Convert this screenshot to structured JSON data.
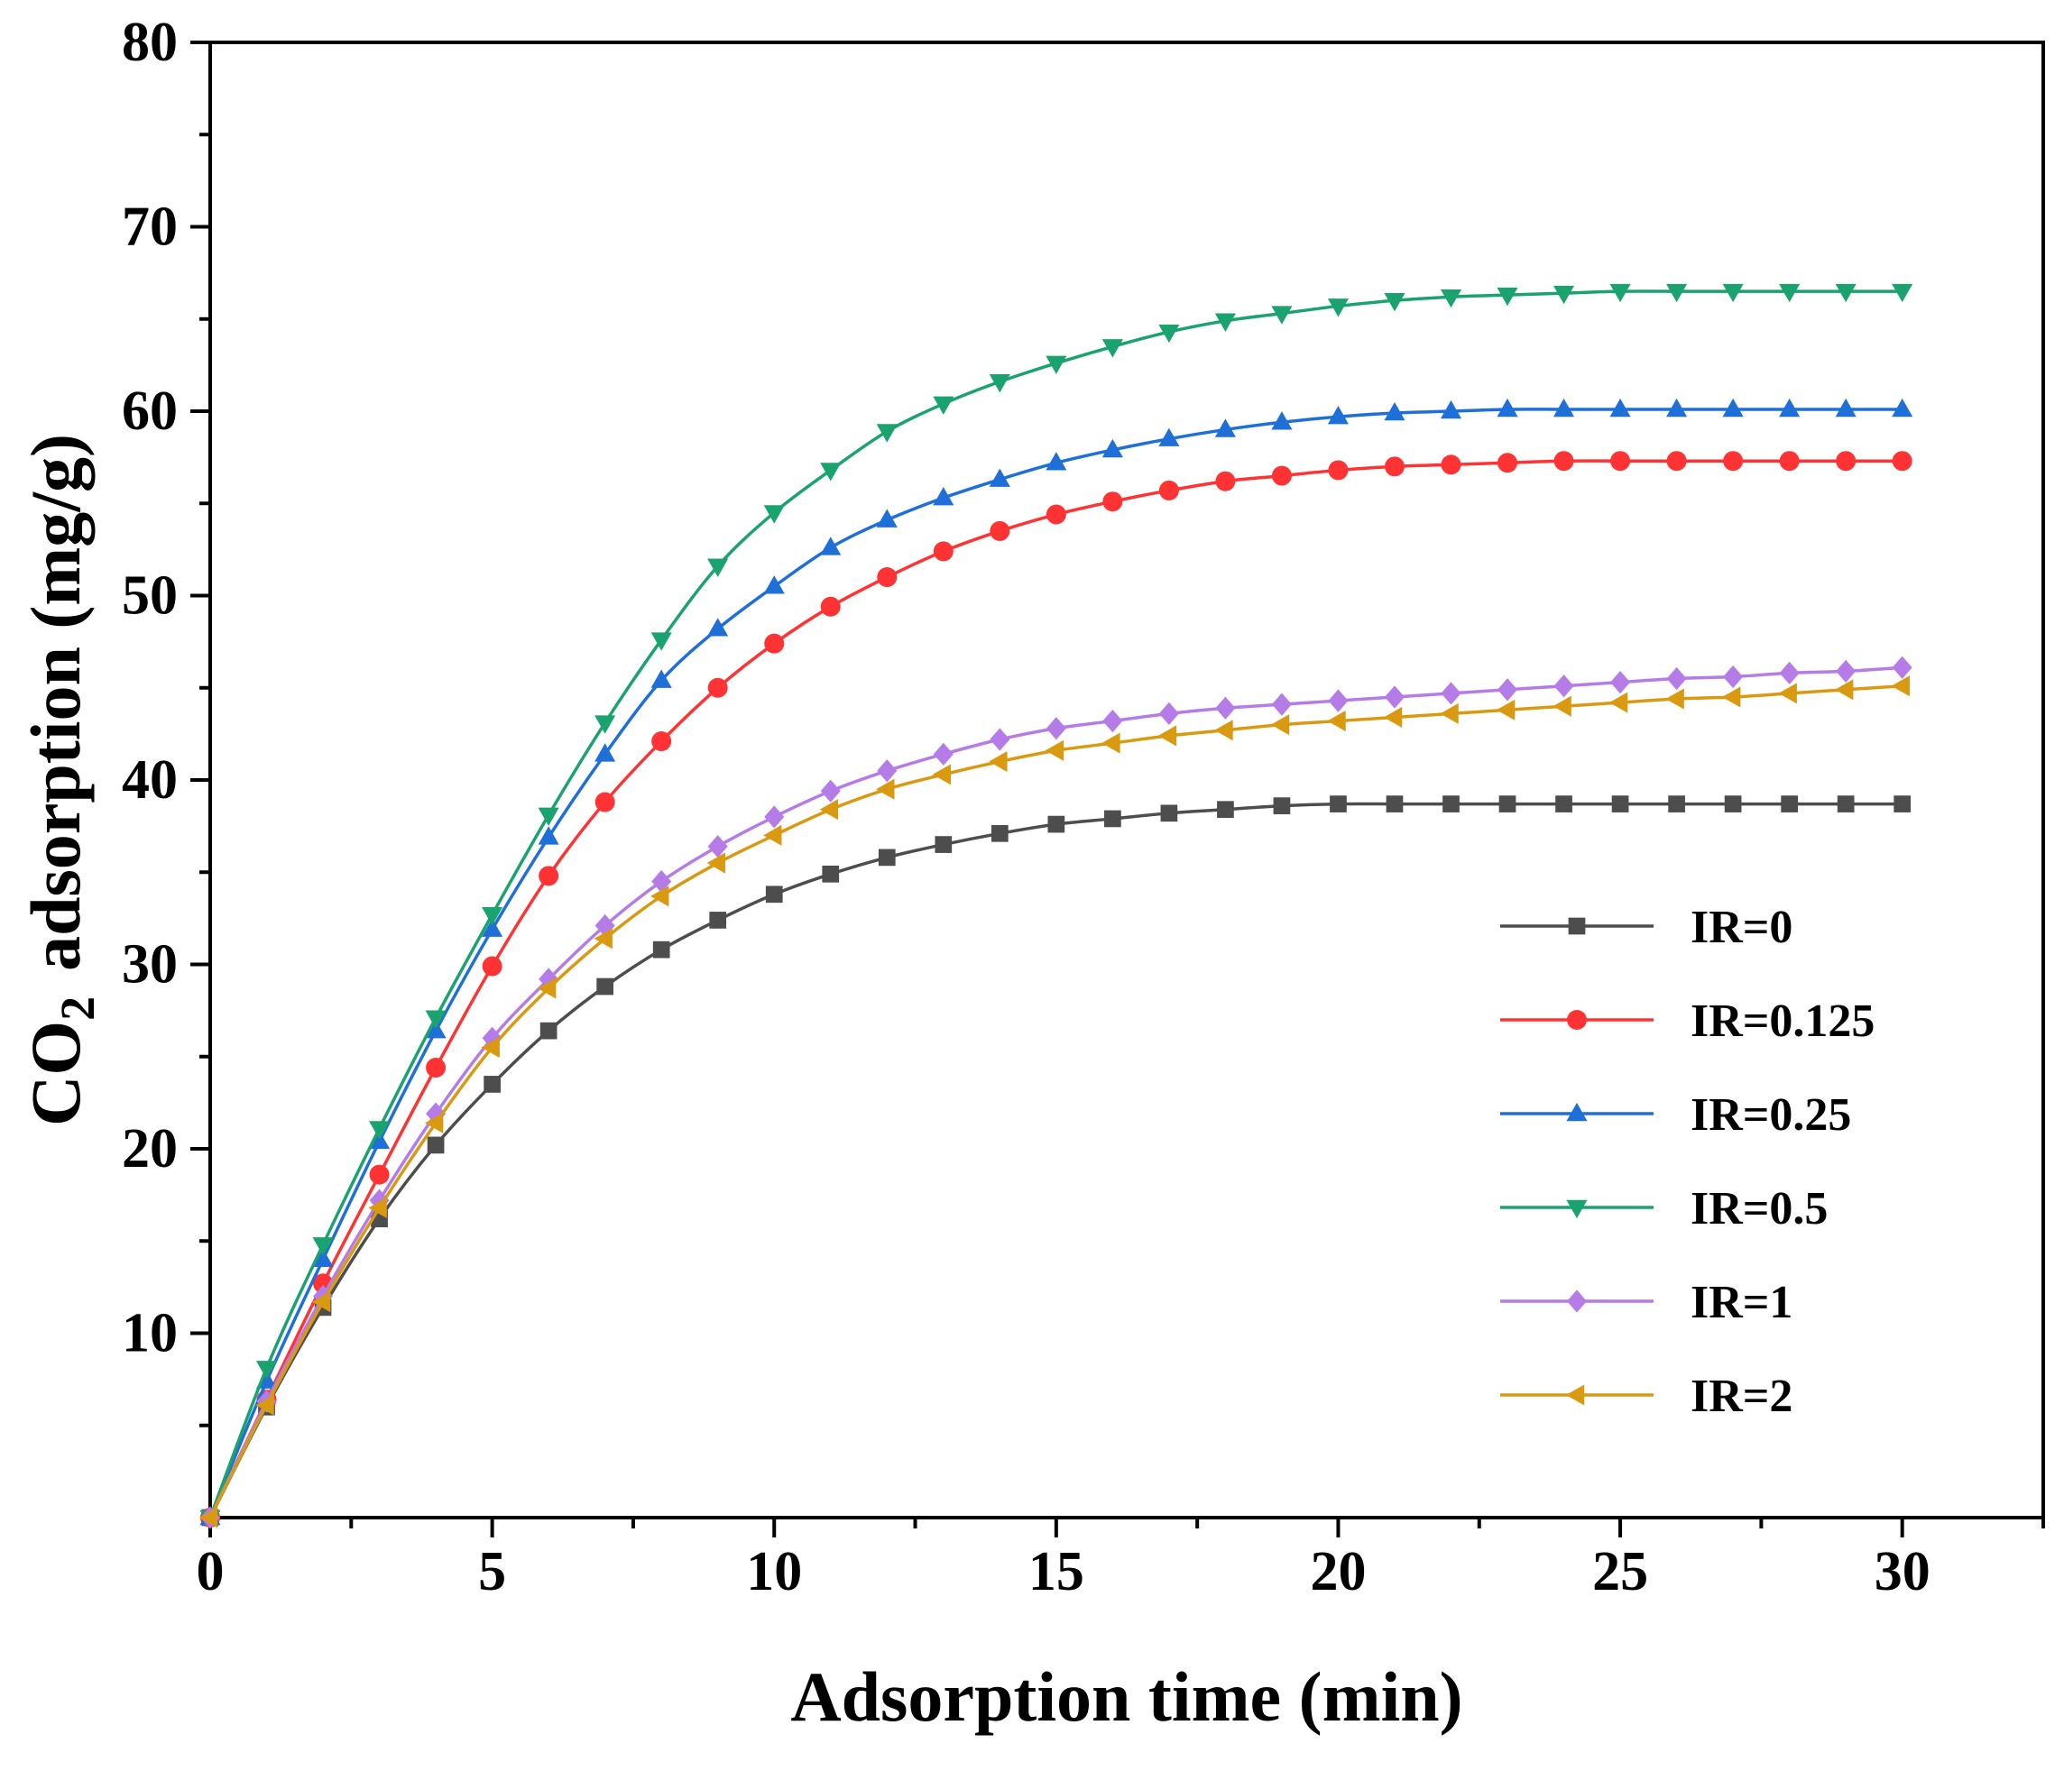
{
  "chart_data": {
    "type": "line",
    "title": "",
    "xlabel": "Adsorption time (min)",
    "ylabel": {
      "prefix": "CO",
      "subscript": "2",
      "suffix": "adsorption (mg/g)"
    },
    "xlim": [
      0,
      32.5
    ],
    "ylim": [
      0,
      80
    ],
    "xticks": [
      0,
      5,
      10,
      15,
      20,
      25,
      30
    ],
    "yticks": [
      10,
      20,
      30,
      40,
      50,
      60,
      70,
      80
    ],
    "grid": false,
    "legend_position": "right",
    "x": [
      0,
      1,
      2,
      3,
      4,
      5,
      6,
      7,
      8,
      9,
      10,
      11,
      12,
      13,
      14,
      15,
      16,
      17,
      18,
      19,
      20,
      21,
      22,
      23,
      24,
      25,
      26,
      27,
      28,
      29,
      30
    ],
    "series": [
      {
        "name": "IR=0",
        "color": "#4d4d4d",
        "marker": "square",
        "values": [
          0,
          6.0,
          11.4,
          16.2,
          20.2,
          23.5,
          26.4,
          28.8,
          30.8,
          32.4,
          33.8,
          34.9,
          35.8,
          36.5,
          37.1,
          37.6,
          37.9,
          38.2,
          38.4,
          38.6,
          38.7,
          38.7,
          38.7,
          38.7,
          38.7,
          38.7,
          38.7,
          38.7,
          38.7,
          38.7,
          38.7
        ]
      },
      {
        "name": "IR=0.125",
        "color": "#ff3333",
        "marker": "circle",
        "values": [
          0,
          6.4,
          12.7,
          18.6,
          24.4,
          29.9,
          34.8,
          38.8,
          42.1,
          45.0,
          47.4,
          49.4,
          51.0,
          52.4,
          53.5,
          54.4,
          55.1,
          55.7,
          56.2,
          56.5,
          56.8,
          57.0,
          57.1,
          57.2,
          57.3,
          57.3,
          57.3,
          57.3,
          57.3,
          57.3,
          57.3
        ]
      },
      {
        "name": "IR=0.25",
        "color": "#1f6fd9",
        "marker": "triangle-up",
        "values": [
          0,
          7.4,
          14.0,
          20.4,
          26.4,
          31.9,
          36.9,
          41.4,
          45.4,
          48.2,
          50.5,
          52.6,
          54.1,
          55.3,
          56.3,
          57.2,
          57.9,
          58.5,
          59.0,
          59.4,
          59.7,
          59.9,
          60.0,
          60.1,
          60.1,
          60.1,
          60.1,
          60.1,
          60.1,
          60.1,
          60.1
        ]
      },
      {
        "name": "IR=0.5",
        "color": "#1aa36e",
        "marker": "triangle-down",
        "values": [
          0,
          8.1,
          14.8,
          21.1,
          27.1,
          32.7,
          38.1,
          43.1,
          47.6,
          51.6,
          54.5,
          56.8,
          58.9,
          60.4,
          61.6,
          62.6,
          63.5,
          64.3,
          64.9,
          65.3,
          65.7,
          66.0,
          66.2,
          66.3,
          66.4,
          66.5,
          66.5,
          66.5,
          66.5,
          66.5,
          66.5
        ]
      },
      {
        "name": "IR=1",
        "color": "#b57be6",
        "marker": "diamond",
        "values": [
          0,
          6.3,
          12.0,
          17.2,
          21.9,
          26.0,
          29.2,
          32.1,
          34.5,
          36.4,
          38.0,
          39.4,
          40.5,
          41.4,
          42.2,
          42.8,
          43.2,
          43.6,
          43.9,
          44.1,
          44.3,
          44.5,
          44.7,
          44.9,
          45.1,
          45.3,
          45.5,
          45.6,
          45.8,
          45.9,
          46.1
        ]
      },
      {
        "name": "IR=2",
        "color": "#d99a12",
        "marker": "triangle-left",
        "values": [
          0,
          6.1,
          11.7,
          16.8,
          21.4,
          25.5,
          28.7,
          31.4,
          33.7,
          35.5,
          37.0,
          38.4,
          39.5,
          40.3,
          41.0,
          41.6,
          42.0,
          42.4,
          42.7,
          43.0,
          43.2,
          43.4,
          43.6,
          43.8,
          44.0,
          44.2,
          44.4,
          44.5,
          44.7,
          44.9,
          45.1
        ]
      }
    ]
  }
}
